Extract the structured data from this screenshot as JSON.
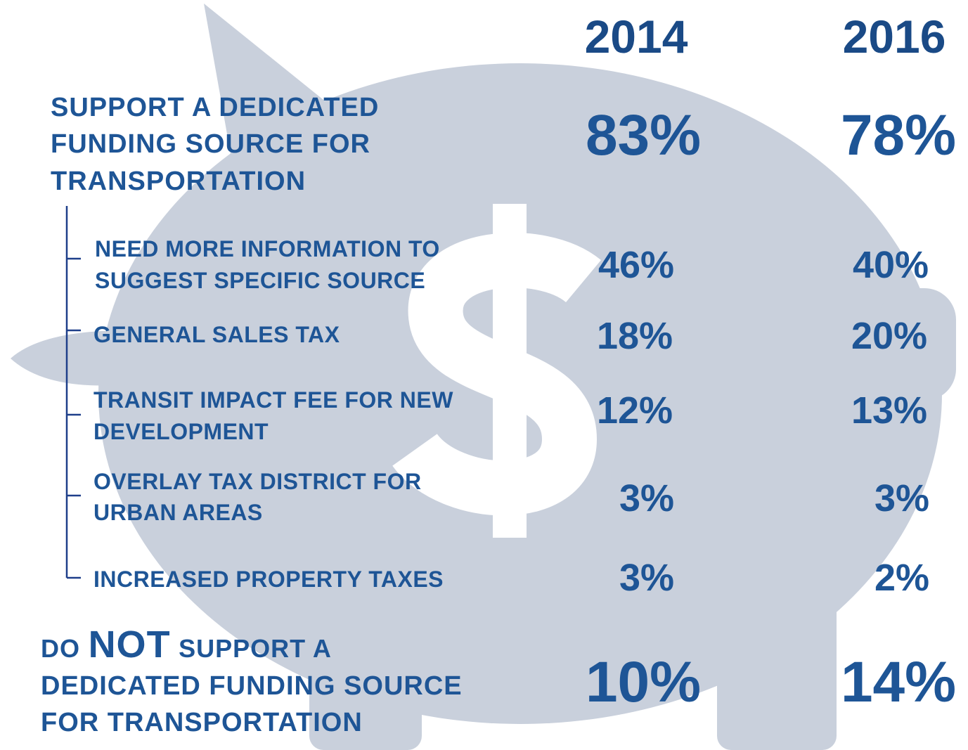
{
  "columns": [
    "2014",
    "2016"
  ],
  "support": {
    "label": [
      "SUPPORT A DEDICATED",
      "FUNDING SOURCE FOR",
      "TRANSPORTATION"
    ],
    "values": [
      "83%",
      "78%"
    ]
  },
  "sources": [
    {
      "label": [
        "NEED MORE INFORMATION TO",
        "SUGGEST SPECIFIC SOURCE"
      ],
      "values": [
        "46%",
        "40%"
      ]
    },
    {
      "label": [
        "GENERAL SALES TAX"
      ],
      "values": [
        "18%",
        "20%"
      ]
    },
    {
      "label": [
        "TRANSIT IMPACT FEE FOR NEW",
        "DEVELOPMENT"
      ],
      "values": [
        "12%",
        "13%"
      ]
    },
    {
      "label": [
        "OVERLAY TAX DISTRICT FOR",
        "URBAN AREAS"
      ],
      "values": [
        "3%",
        "3%"
      ]
    },
    {
      "label": [
        "INCREASED PROPERTY TAXES"
      ],
      "values": [
        "3%",
        "2%"
      ]
    }
  ],
  "not_support": {
    "first_line": [
      "DO",
      "NOT",
      "SUPPORT A"
    ],
    "label": [
      "DEDICATED FUNDING SOURCE",
      "FOR TRANSPORTATION"
    ],
    "values": [
      "10%",
      "14%"
    ]
  }
}
